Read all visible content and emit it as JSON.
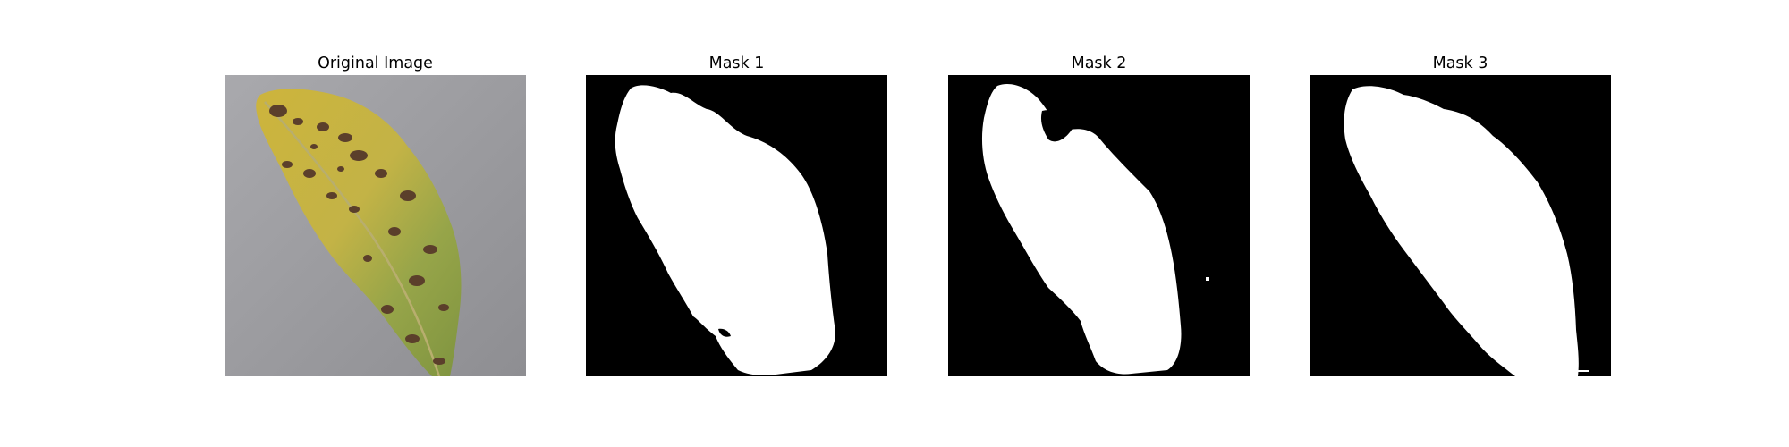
{
  "figure": {
    "panels": [
      {
        "title": "Original Image",
        "content": "leaf-photo"
      },
      {
        "title": "Mask 1",
        "content": "mask"
      },
      {
        "title": "Mask 2",
        "content": "mask"
      },
      {
        "title": "Mask 3",
        "content": "mask"
      }
    ]
  },
  "colors": {
    "mask_background": "#000000",
    "mask_foreground": "#ffffff",
    "photo_background": "#9c9ca0",
    "leaf_yellow": "#c9b43a",
    "leaf_green": "#8d9e45",
    "leaf_spot": "#5a3f2a",
    "leaf_vein": "#b9ad6c"
  }
}
